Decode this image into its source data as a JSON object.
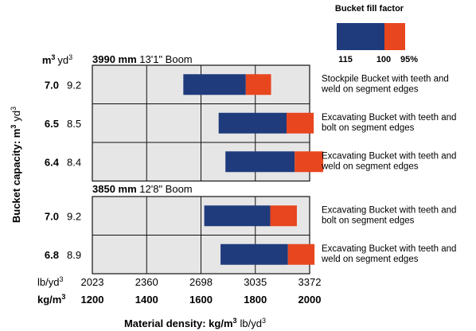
{
  "legend": {
    "title": "Bucket fill factor",
    "labels": [
      "115",
      "100",
      "95%"
    ],
    "colors": {
      "main": "#1f3b7c",
      "accent": "#e8461f"
    }
  },
  "units": {
    "cap_metric": "m",
    "cap_metric_sup": "3",
    "cap_imperial": "yd",
    "cap_imperial_sup": "3",
    "dens_imperial": "lb/yd",
    "dens_imperial_sup": "3",
    "dens_metric": "kg/m",
    "dens_metric_sup": "3"
  },
  "chart_data": {
    "type": "bar",
    "orientation": "horizontal-range",
    "xlabel_bold": "Material density: kg/m",
    "xlabel_bold_sup": "3",
    "xlabel_rest": "lb/yd",
    "xlabel_rest_sup": "3",
    "ylabel_bold": "Bucket capacity: m",
    "ylabel_bold_sup": "3",
    "ylabel_rest": "yd",
    "ylabel_rest_sup": "3",
    "xlim": [
      1200,
      2000
    ],
    "x_ticks_metric": [
      "1200",
      "1400",
      "1600",
      "1800",
      "2000"
    ],
    "x_ticks_imperial": [
      "2023",
      "2360",
      "2698",
      "3035",
      "3372"
    ],
    "series_names": [
      "115",
      "100",
      "95%"
    ],
    "groups": [
      {
        "boom_bold": "3990 mm",
        "boom_rest": "13'1\" Boom",
        "rows": [
          {
            "cap_m3": "7.0",
            "cap_yd3": "9.2",
            "desc": [
              "Stockpile Bucket with teeth and",
              "weld on segment edges"
            ],
            "d115": 1535,
            "d100": 1765,
            "d95": 1858
          },
          {
            "cap_m3": "6.5",
            "cap_yd3": "8.5",
            "desc": [
              "Excavating Bucket with teeth and",
              "bolt on segment edges"
            ],
            "d115": 1665,
            "d100": 1915,
            "d95": 2015
          },
          {
            "cap_m3": "6.4",
            "cap_yd3": "8.4",
            "desc": [
              "Excavating Bucket with teeth and",
              "weld on segment edges"
            ],
            "d115": 1690,
            "d100": 1945,
            "d95": 2050
          }
        ]
      },
      {
        "boom_bold": "3850 mm",
        "boom_rest": "12'8\" Boom",
        "rows": [
          {
            "cap_m3": "7.0",
            "cap_yd3": "9.2",
            "desc": [
              "Excavating Bucket with teeth and",
              "bolt on segment edges"
            ],
            "d115": 1612,
            "d100": 1855,
            "d95": 1953
          },
          {
            "cap_m3": "6.8",
            "cap_yd3": "8.9",
            "desc": [
              "Excavating Bucket with teeth and",
              "weld on segment edges"
            ],
            "d115": 1672,
            "d100": 1920,
            "d95": 2018
          }
        ]
      }
    ]
  }
}
